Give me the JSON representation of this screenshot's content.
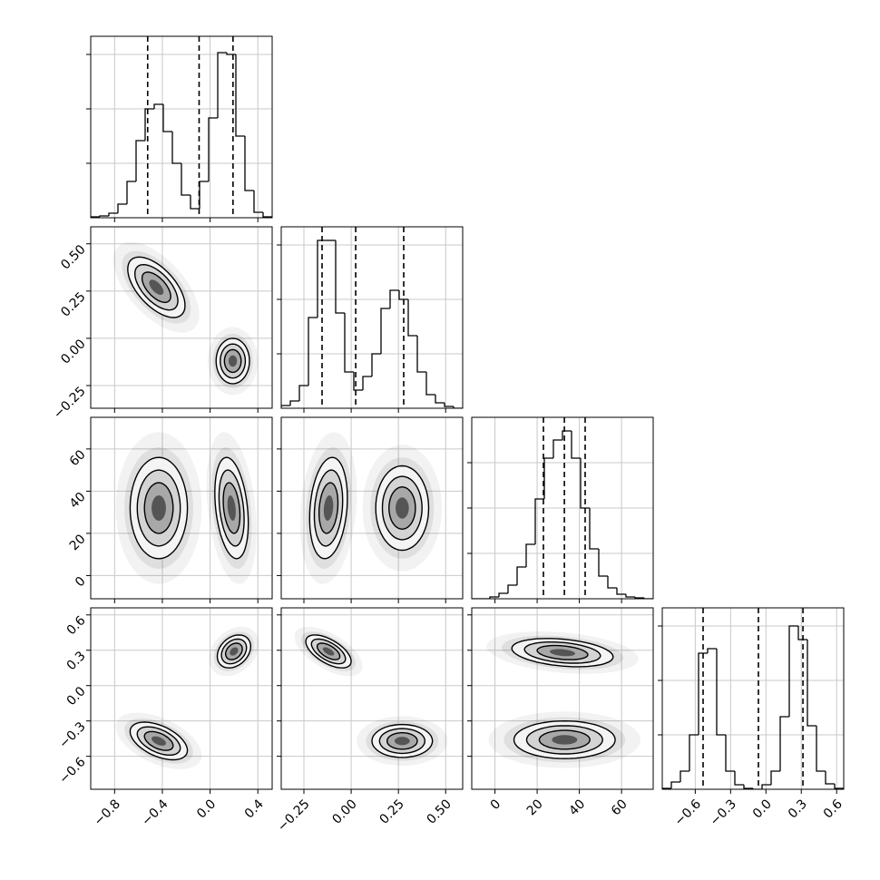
{
  "chart_data": {
    "type": "corner",
    "grid": true,
    "color": "#000000",
    "params": [
      {
        "xlim": [
          -1.0,
          0.52
        ],
        "ticks": [
          {
            "value": -0.8,
            "label": "−0.8"
          },
          {
            "value": -0.4,
            "label": "−0.4"
          },
          {
            "value": 0.0,
            "label": "0.0"
          },
          0.4
        ],
        "hist": {
          "bins": [
            -1.0,
            -0.924,
            -0.848,
            -0.772,
            -0.696,
            -0.62,
            -0.544,
            -0.468,
            -0.392,
            -0.316,
            -0.24,
            -0.164,
            -0.088,
            -0.012,
            0.064,
            0.14,
            0.216,
            0.292,
            0.368,
            0.444,
            0.52
          ],
          "counts": [
            1,
            2,
            5,
            15,
            40,
            85,
            120,
            125,
            95,
            60,
            25,
            10,
            40,
            110,
            182,
            180,
            90,
            30,
            6,
            1
          ],
          "ylim": [
            0,
            200
          ],
          "yticks": [
            60,
            120,
            180
          ],
          "quantiles": [
            -0.523,
            -0.092,
            0.192
          ]
        },
        "pairs": []
      },
      {
        "xlim": [
          -0.37,
          0.59
        ],
        "ticks": [
          {
            "value": -0.25,
            "label": "−0.25"
          },
          {
            "value": 0.0,
            "label": "0.00"
          },
          0.25,
          {
            "value": 0.5,
            "label": "0.50"
          }
        ],
        "hist": {
          "bins": [
            -0.37,
            -0.322,
            -0.274,
            -0.226,
            -0.178,
            -0.13,
            -0.082,
            -0.034,
            0.014,
            0.062,
            0.11,
            0.158,
            0.206,
            0.254,
            0.302,
            0.35,
            0.398,
            0.446,
            0.494,
            0.542,
            0.59
          ],
          "counts": [
            3,
            8,
            25,
            100,
            185,
            185,
            105,
            40,
            20,
            35,
            60,
            110,
            130,
            120,
            80,
            40,
            15,
            6,
            2,
            0
          ],
          "ylim": [
            0,
            200
          ],
          "yticks": [
            60,
            120,
            180
          ],
          "quantiles": [
            -0.154,
            0.024,
            0.278
          ]
        },
        "pairs": [
          [
            {
              "x": -0.45,
              "y": 0.27,
              "sx": 0.12,
              "sy": 0.08,
              "rho": -0.6
            },
            {
              "x": 0.19,
              "y": -0.12,
              "sx": 0.07,
              "sy": 0.06,
              "rho": 0
            }
          ]
        ]
      },
      {
        "xlim": [
          -11,
          75
        ],
        "ticks": [
          0,
          20,
          40,
          60
        ],
        "hist": {
          "bins": [
            -11,
            -6.7,
            -2.4,
            1.9,
            6.2,
            10.5,
            14.8,
            19.1,
            23.4,
            27.7,
            32,
            36.3,
            40.6,
            44.9,
            49.2,
            53.5,
            57.8,
            62.1,
            66.4,
            70.7,
            75
          ],
          "counts": [
            0,
            0,
            2,
            6,
            15,
            35,
            60,
            110,
            155,
            175,
            185,
            155,
            100,
            55,
            25,
            12,
            5,
            2,
            1,
            0
          ],
          "ylim": [
            0,
            200
          ],
          "yticks": [
            50,
            100,
            150
          ],
          "quantiles": [
            22.97,
            32.9,
            42.75
          ]
        },
        "pairs": [
          [
            {
              "x": -0.43,
              "y": 32,
              "sx": 0.12,
              "sy": 12,
              "rho": 0
            },
            {
              "x": 0.18,
              "y": 32,
              "sx": 0.07,
              "sy": 12,
              "rho": -0.3
            }
          ],
          [
            {
              "x": -0.12,
              "y": 32,
              "sx": 0.05,
              "sy": 12,
              "rho": 0.2
            },
            {
              "x": 0.27,
              "y": 32,
              "sx": 0.07,
              "sy": 10,
              "rho": 0
            }
          ]
        ]
      },
      {
        "xlim": [
          -0.88,
          0.66
        ],
        "ticks": [
          {
            "value": -0.6,
            "label": "−0.6"
          },
          {
            "value": -0.3,
            "label": "−0.3"
          },
          {
            "value": 0.0,
            "label": "0.0"
          },
          0.3,
          0.6
        ],
        "hist": {
          "bins": [
            -0.88,
            -0.803,
            -0.726,
            -0.649,
            -0.572,
            -0.495,
            -0.418,
            -0.341,
            -0.264,
            -0.187,
            -0.11,
            -0.033,
            0.044,
            0.121,
            0.198,
            0.275,
            0.352,
            0.429,
            0.506,
            0.583,
            0.66
          ],
          "counts": [
            1,
            8,
            20,
            60,
            150,
            155,
            60,
            20,
            5,
            1,
            0,
            5,
            20,
            80,
            180,
            165,
            70,
            20,
            6,
            1
          ],
          "ylim": [
            0,
            200
          ],
          "yticks": [
            60,
            120,
            180
          ],
          "quantiles": [
            -0.5335,
            -0.064,
            0.314
          ]
        },
        "pairs": [
          [
            {
              "x": 0.2,
              "y": 0.29,
              "sx": 0.07,
              "sy": 0.07,
              "rho": 0.3
            },
            {
              "x": -0.43,
              "y": -0.47,
              "sx": 0.12,
              "sy": 0.08,
              "rho": -0.5
            }
          ],
          [
            {
              "x": -0.12,
              "y": 0.29,
              "sx": 0.06,
              "sy": 0.07,
              "rho": -0.6
            },
            {
              "x": 0.27,
              "y": -0.47,
              "sx": 0.08,
              "sy": 0.07,
              "rho": 0
            }
          ],
          [
            {
              "x": 32,
              "y": 0.28,
              "sx": 12,
              "sy": 0.06,
              "rho": -0.3
            },
            {
              "x": 33,
              "y": -0.46,
              "sx": 12,
              "sy": 0.08,
              "rho": 0
            }
          ]
        ]
      }
    ]
  }
}
